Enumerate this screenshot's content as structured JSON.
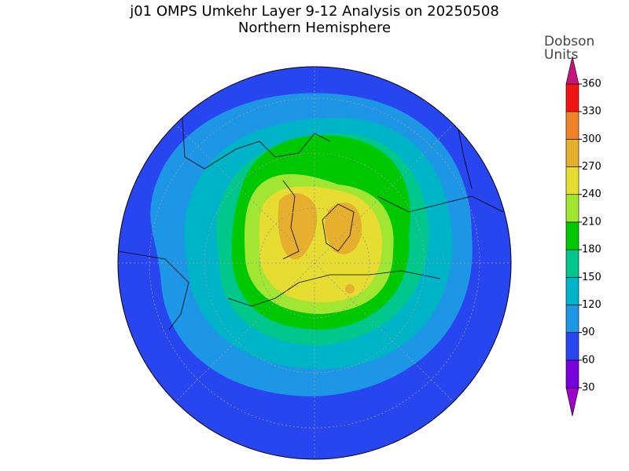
{
  "title": "j01 OMPS Umkehr Layer 9-12 Analysis on 20250508",
  "subtitle": "Northern Hemisphere",
  "colorbar": {
    "label": [
      "Dobson",
      "Units"
    ],
    "ticks": [
      30,
      60,
      90,
      120,
      150,
      180,
      210,
      240,
      270,
      300,
      330,
      360
    ],
    "colors": [
      "#a000c8",
      "#7800dc",
      "#2846f0",
      "#1e96e6",
      "#00b4c8",
      "#00c88c",
      "#00c800",
      "#a0e632",
      "#e6dc32",
      "#e6af2d",
      "#f08228",
      "#f01414",
      "#c8147a"
    ]
  }
}
